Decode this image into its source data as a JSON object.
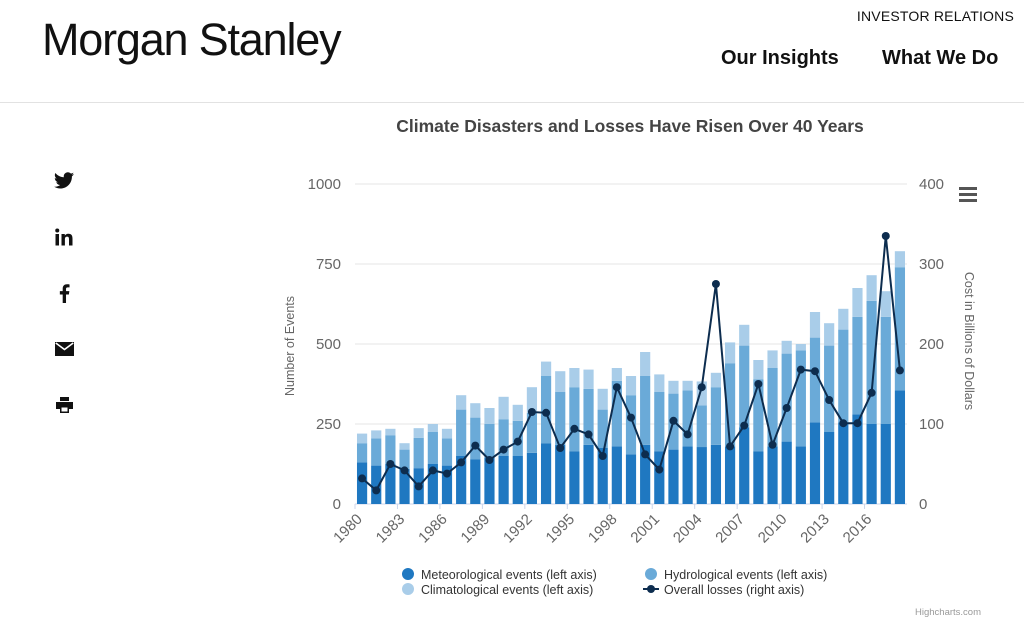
{
  "header": {
    "logo_text": "Morgan Stanley",
    "investor_relations": "INVESTOR RELATIONS",
    "nav": [
      {
        "label": "Our Insights"
      },
      {
        "label": "What We Do"
      }
    ]
  },
  "share_icons": [
    "twitter-icon",
    "linkedin-icon",
    "facebook-icon",
    "email-icon",
    "print-icon"
  ],
  "credits": "Highcharts.com",
  "colors": {
    "meteorological": "#1f78c1",
    "hydrological": "#6aaad8",
    "climatological": "#a9cde9",
    "losses": "#0d2d4f"
  },
  "chart_data": {
    "type": "bar",
    "title": "Climate Disasters and Losses Have Risen Over 40 Years",
    "ylabel_left": "Number of Events",
    "ylabel_right": "Cost in Billions of Dollars",
    "ylim_left": [
      0,
      1000
    ],
    "ylim_right": [
      0,
      400
    ],
    "yticks_left": [
      "0",
      "250",
      "500",
      "750",
      "1000"
    ],
    "yticks_right": [
      "0",
      "100",
      "200",
      "300",
      "400"
    ],
    "stacked": true,
    "grid": true,
    "legend_position": "bottom",
    "x": [
      1980,
      1981,
      1982,
      1983,
      1984,
      1985,
      1986,
      1987,
      1988,
      1989,
      1990,
      1991,
      1992,
      1993,
      1994,
      1995,
      1996,
      1997,
      1998,
      1999,
      2000,
      2001,
      2002,
      2003,
      2004,
      2005,
      2006,
      2007,
      2008,
      2009,
      2010,
      2011,
      2012,
      2013,
      2014,
      2015,
      2016,
      2017,
      2018
    ],
    "xtick_labels": [
      "1980",
      "1983",
      "1986",
      "1989",
      "1992",
      "1995",
      "1998",
      "2001",
      "2004",
      "2007",
      "2010",
      "2013",
      "2016"
    ],
    "series": [
      {
        "name": "Meteorological events (left axis)",
        "axis": "left",
        "kind": "bar",
        "values": [
          130,
          120,
          125,
          110,
          112,
          125,
          120,
          150,
          140,
          145,
          150,
          150,
          160,
          190,
          185,
          165,
          185,
          175,
          180,
          155,
          185,
          165,
          170,
          180,
          178,
          185,
          180,
          240,
          165,
          180,
          195,
          180,
          255,
          225,
          255,
          280,
          250,
          250,
          355
        ]
      },
      {
        "name": "Hydrological events (left axis)",
        "axis": "left",
        "kind": "bar",
        "values": [
          60,
          85,
          90,
          60,
          95,
          100,
          85,
          145,
          130,
          105,
          115,
          110,
          125,
          210,
          165,
          200,
          175,
          120,
          205,
          185,
          215,
          185,
          175,
          175,
          130,
          180,
          260,
          255,
          225,
          245,
          275,
          300,
          265,
          270,
          290,
          305,
          385,
          335,
          385
        ]
      },
      {
        "name": "Climatological events (left axis)",
        "axis": "left",
        "kind": "bar",
        "values": [
          30,
          25,
          20,
          20,
          30,
          25,
          30,
          45,
          45,
          50,
          70,
          50,
          80,
          45,
          65,
          60,
          60,
          65,
          40,
          60,
          75,
          55,
          40,
          30,
          75,
          45,
          65,
          65,
          60,
          55,
          40,
          20,
          80,
          70,
          65,
          90,
          80,
          80,
          50
        ]
      },
      {
        "name": "Overall losses (right axis)",
        "axis": "right",
        "kind": "line",
        "values": [
          32,
          17,
          50,
          42,
          22,
          42,
          38,
          52,
          73,
          55,
          68,
          78,
          115,
          114,
          70,
          94,
          87,
          60,
          146,
          108,
          62,
          43,
          104,
          87,
          146,
          275,
          72,
          98,
          150,
          74,
          120,
          168,
          166,
          130,
          101,
          101,
          139,
          335,
          167
        ]
      }
    ]
  }
}
